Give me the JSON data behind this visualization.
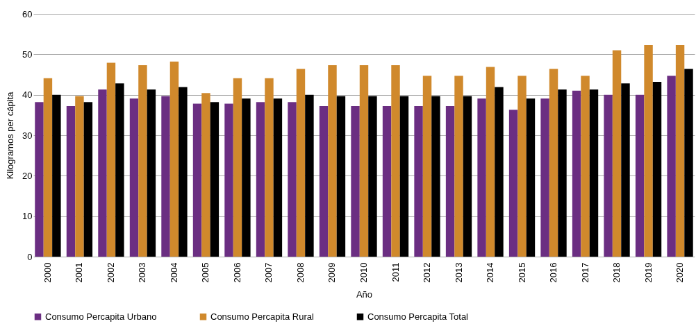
{
  "chart_data": {
    "type": "bar",
    "xlabel": "Año",
    "ylabel": "Kilogramos per cápita",
    "categories": [
      "2000",
      "2001",
      "2002",
      "2003",
      "2004",
      "2005",
      "2006",
      "2007",
      "2008",
      "2009",
      "2010",
      "2011",
      "2012",
      "2013",
      "2014",
      "2015",
      "2016",
      "2017",
      "2018",
      "2019",
      "2020"
    ],
    "series": [
      {
        "name": "Consumo Percapita Urbano",
        "color": "#6b2e82",
        "values": [
          38.2,
          37.2,
          41.3,
          39.1,
          39.7,
          37.8,
          37.8,
          38.2,
          38.2,
          37.2,
          37.2,
          37.2,
          37.2,
          37.2,
          39.1,
          36.3,
          39.1,
          41.0,
          40.0,
          40.0,
          44.7
        ]
      },
      {
        "name": "Consumo Percapita Rural",
        "color": "#d0892c",
        "values": [
          44.1,
          39.7,
          47.9,
          47.3,
          48.2,
          40.4,
          44.1,
          44.1,
          46.4,
          47.3,
          47.3,
          47.3,
          44.7,
          44.7,
          46.9,
          44.7,
          46.4,
          44.7,
          51.0,
          52.3,
          52.3
        ]
      },
      {
        "name": "Consumo Percapita Total",
        "color": "#000000",
        "values": [
          40.0,
          38.2,
          42.8,
          41.3,
          41.9,
          38.2,
          39.1,
          39.1,
          40.0,
          39.7,
          39.7,
          39.7,
          39.7,
          39.7,
          41.9,
          39.1,
          41.3,
          41.3,
          42.8,
          43.2,
          46.4
        ]
      }
    ],
    "ylim": [
      0,
      60
    ],
    "yticks": [
      0,
      10,
      20,
      30,
      40,
      50,
      60
    ],
    "grid": "y",
    "legend": "bottom"
  }
}
